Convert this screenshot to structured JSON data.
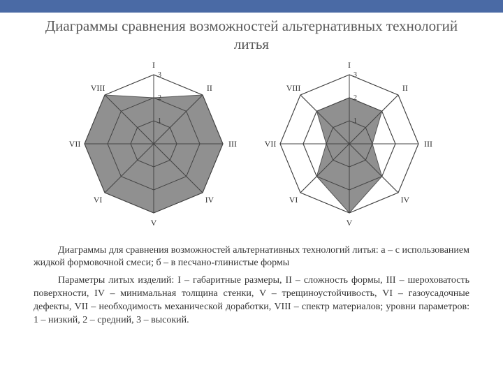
{
  "header": {
    "title": "Диаграммы сравнения возможностей альтернативных технологий литья"
  },
  "radar": {
    "axis_labels": [
      "I",
      "II",
      "III",
      "IV",
      "V",
      "VI",
      "VII",
      "VIII"
    ],
    "ring_labels": [
      "1",
      "2",
      "3"
    ],
    "levels": 3,
    "max": 3,
    "poly_fill": "#8a8a8a",
    "poly_stroke": "#555555",
    "grid_stroke": "#444444",
    "grid_width": 1,
    "label_font_size": 12,
    "ring_font_size": 10,
    "background": "#ffffff",
    "charts": [
      {
        "size": 250,
        "values": [
          2,
          3,
          3,
          3,
          3,
          3,
          3,
          3
        ]
      },
      {
        "size": 250,
        "values": [
          2,
          2,
          1,
          2,
          3,
          2,
          1,
          2
        ]
      }
    ]
  },
  "caption": {
    "p1": "Диаграммы для сравнения возможностей альтернативных технологий литья: а – с использованием жидкой формовочной смеси; б – в песчано-глинистые формы",
    "p2": "Параметры литых изделий: I – габаритные размеры, II – сложность формы, III – шероховатость поверхности, IV – минимальная толщина стенки, V – трещиноустойчивость, VI – газоусадочные дефекты, VII – необходимость механической доработки, VIII – спектр материалов; уровни параметров: 1 – низкий, 2 – средний, 3 – высокий."
  }
}
